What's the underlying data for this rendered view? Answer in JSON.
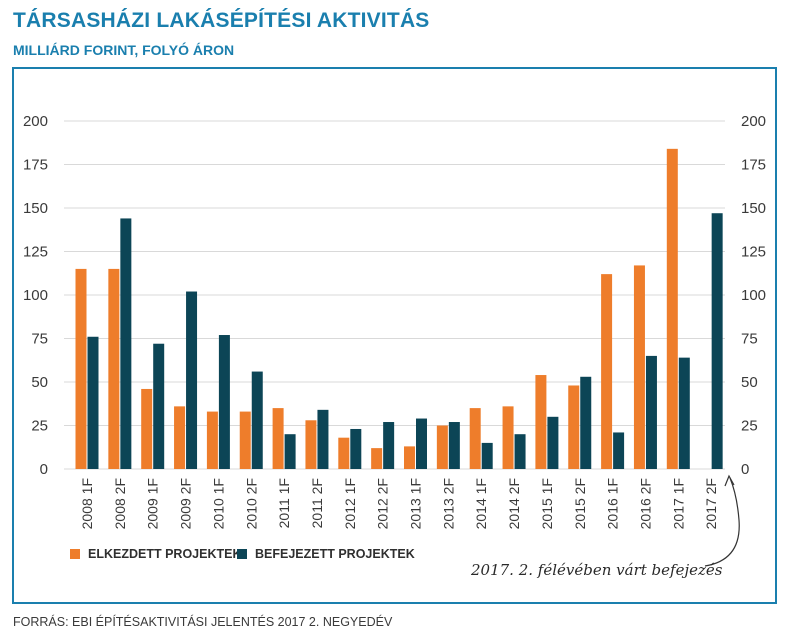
{
  "header": {
    "title": "TÁRSASHÁZI LAKÁSÉPÍTÉSI AKTIVITÁS",
    "subtitle": "MILLIÁRD FORINT, FOLYÓ ÁRON"
  },
  "footer": {
    "source": "FORRÁS: EBI ÉPÍTÉSAKTIVITÁSI JELENTÉS 2017 2. NEGYEDÉV"
  },
  "annotation": {
    "text": "2017. 2. félévében várt befejezés"
  },
  "colors": {
    "accent": "#1a7fae",
    "started": "#ee7d2b",
    "completed": "#0c4556",
    "grid": "#d9d9d9"
  },
  "chart_data": {
    "type": "bar",
    "title": "TÁRSASHÁZI LAKÁSÉPÍTÉSI AKTIVITÁS",
    "subtitle": "MILLIÁRD FORINT, FOLYÓ ÁRON",
    "categories": [
      "2008 1F",
      "2008 2F",
      "2009 1F",
      "2009 2F",
      "2010 1F",
      "2010 2F",
      "2011 1F",
      "2011 2F",
      "2012 1F",
      "2012 2F",
      "2013 1F",
      "2013 2F",
      "2014 1F",
      "2014 2F",
      "2015 1F",
      "2015 2F",
      "2016 1F",
      "2016 2F",
      "2017 1F",
      "2017 2F"
    ],
    "series": [
      {
        "name": "ELKEZDETT PROJEKTEK",
        "color": "#ee7d2b",
        "values": [
          115,
          115,
          46,
          36,
          33,
          33,
          35,
          28,
          18,
          12,
          13,
          25,
          35,
          36,
          54,
          48,
          112,
          117,
          184,
          null
        ]
      },
      {
        "name": "BEFEJEZETT PROJEKTEK",
        "color": "#0c4556",
        "values": [
          76,
          144,
          72,
          102,
          77,
          56,
          20,
          34,
          23,
          27,
          29,
          27,
          15,
          20,
          30,
          53,
          21,
          65,
          64,
          147
        ]
      }
    ],
    "ylim": [
      0,
      200
    ],
    "yticks": [
      "0",
      "25",
      "50",
      "75",
      "100",
      "125",
      "150",
      "175",
      "200"
    ],
    "ytick_values": [
      0,
      25,
      50,
      75,
      100,
      125,
      150,
      175,
      200
    ],
    "grid": true,
    "legend_position": "bottom-left",
    "dual_axis_labels": true
  }
}
